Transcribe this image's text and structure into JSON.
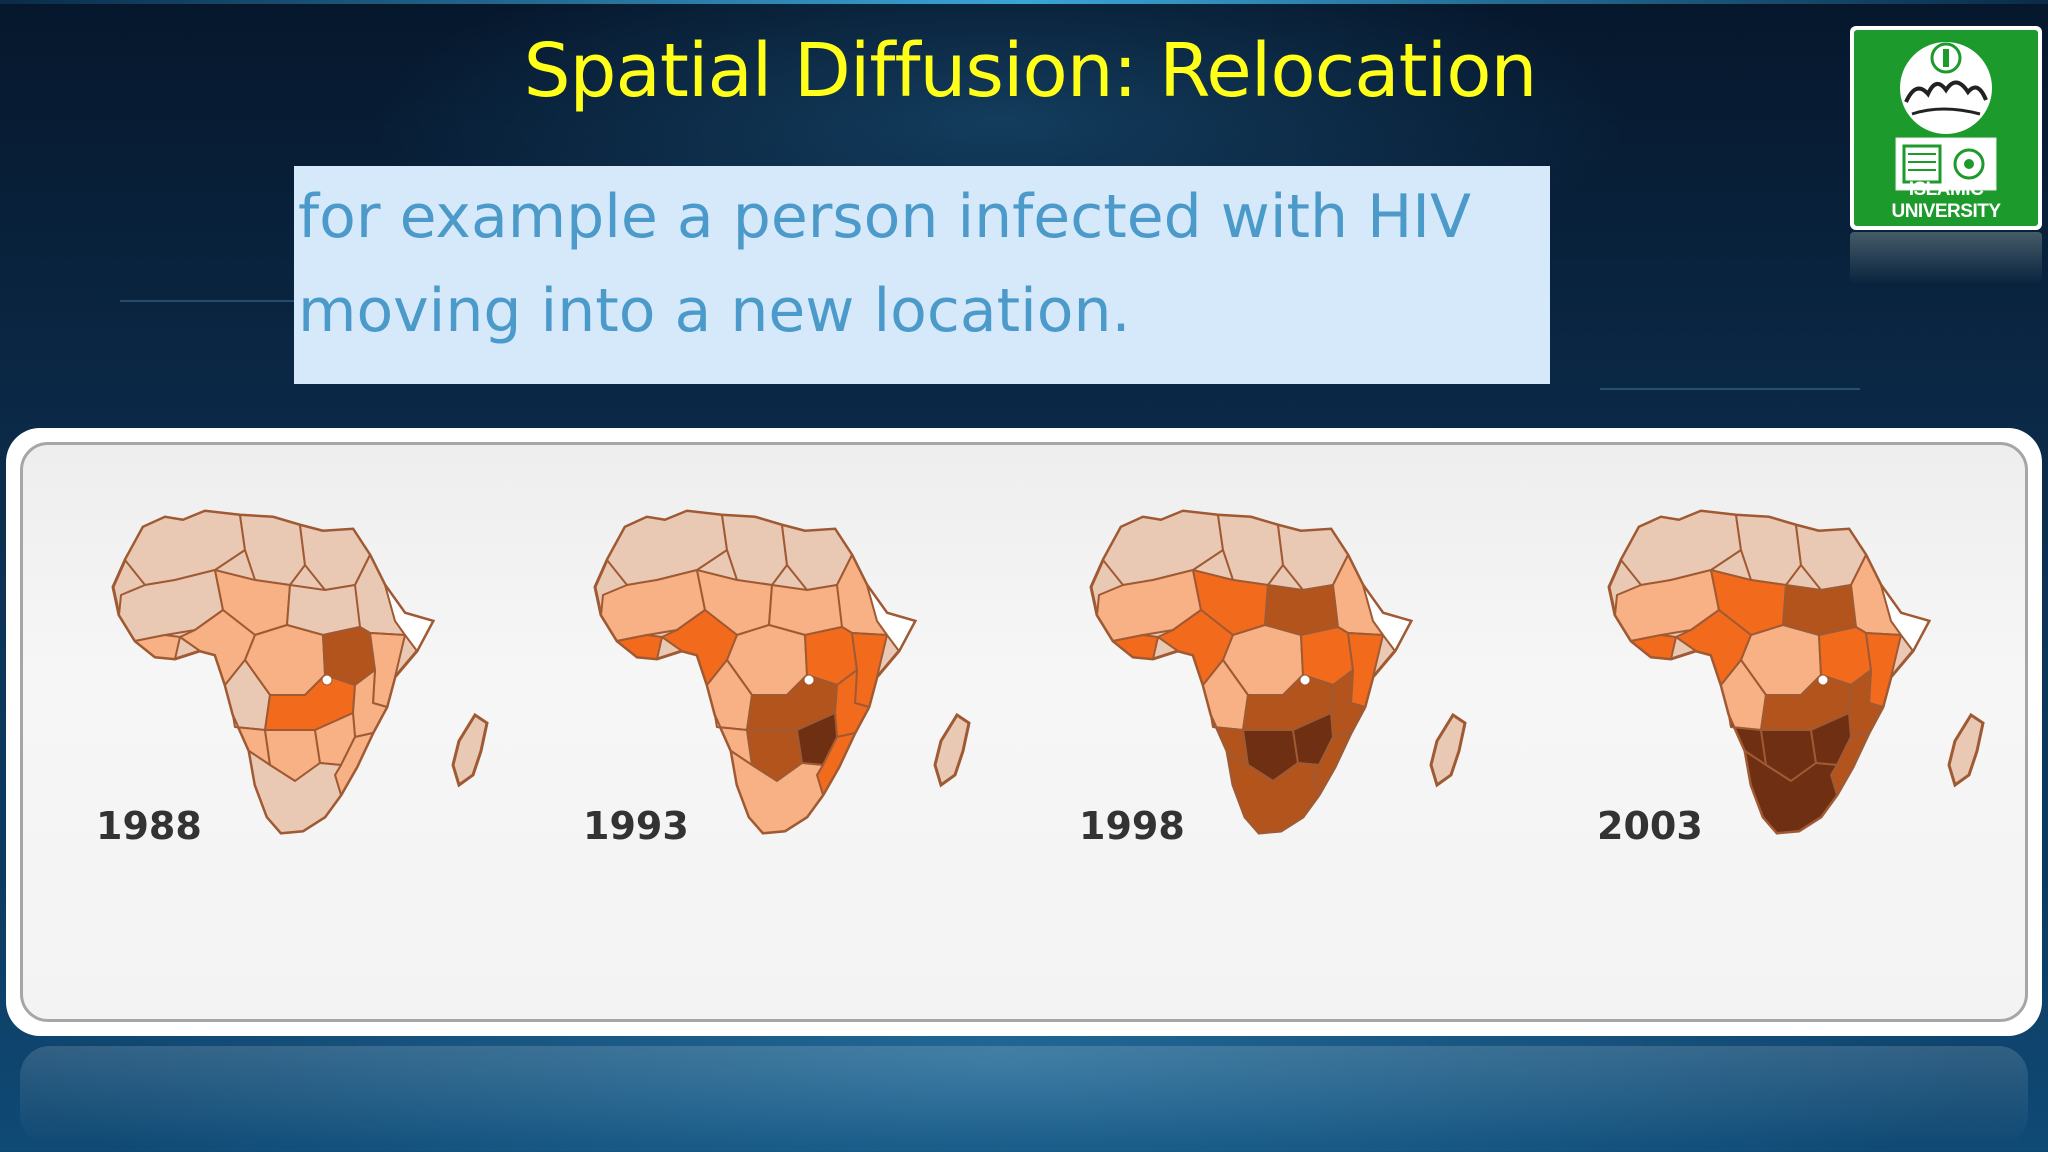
{
  "slide": {
    "title": "Spatial Diffusion: Relocation",
    "body_lines": [
      "for example a person infected with HIV",
      "moving into a new location."
    ],
    "logo": {
      "caption": "ISLAMIC UNIVERSITY",
      "icon": "islamic-university-crest-icon"
    }
  },
  "maps": [
    {
      "year": "1988",
      "stage": 0
    },
    {
      "year": "1993",
      "stage": 1
    },
    {
      "year": "1998",
      "stage": 2
    },
    {
      "year": "2003",
      "stage": 3
    }
  ],
  "colors": {
    "title": "#ffff1a",
    "body_text": "#4b9ac9",
    "text_box": "#d6e9fb",
    "none": "#e9c9b4",
    "low": "#f7b184",
    "medium": "#f26b1d",
    "high": "#b3541c",
    "very_high": "#6e2f12",
    "border": "#a05a33"
  }
}
